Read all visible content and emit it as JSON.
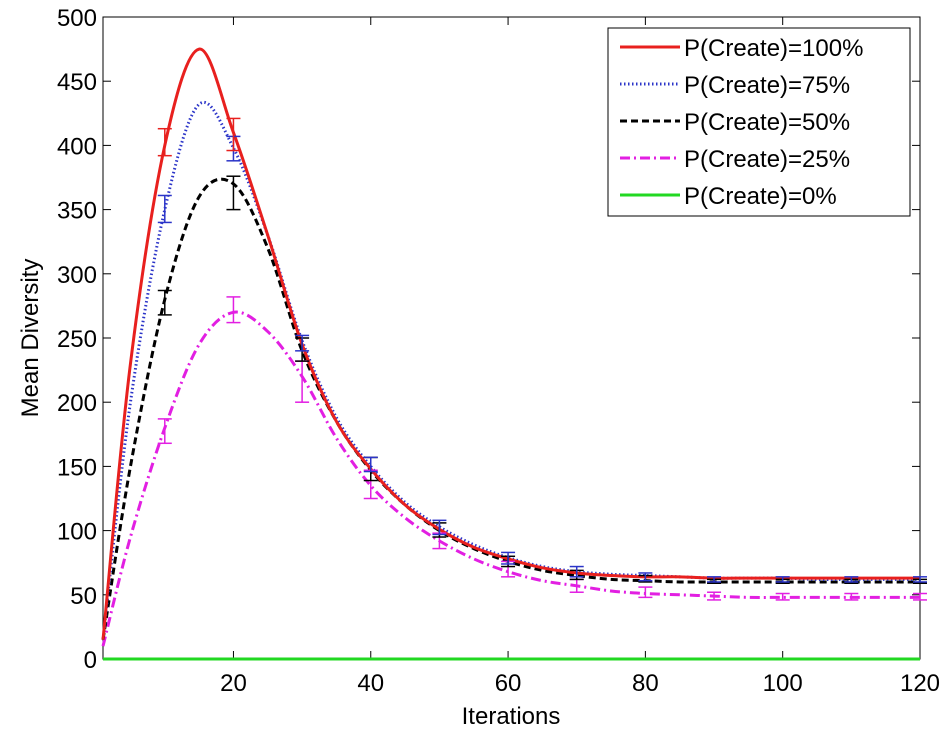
{
  "chart_data": {
    "type": "line",
    "title": "",
    "xlabel": "Iterations",
    "ylabel": "Mean Diversity",
    "xlim": [
      1,
      120
    ],
    "ylim": [
      0,
      500
    ],
    "xticks": [
      20,
      40,
      60,
      80,
      100,
      120
    ],
    "yticks": [
      0,
      50,
      100,
      150,
      200,
      250,
      300,
      350,
      400,
      450,
      500
    ],
    "grid": false,
    "legend_position": "top-right",
    "x": [
      1,
      5,
      10,
      15,
      20,
      25,
      30,
      35,
      40,
      45,
      50,
      55,
      60,
      65,
      70,
      75,
      80,
      85,
      90,
      95,
      100,
      105,
      110,
      115,
      120
    ],
    "series": [
      {
        "name": "P(Create)=100%",
        "color": "#e8201e",
        "dash": "solid",
        "values": [
          15,
          230,
          400,
          475,
          410,
          330,
          245,
          185,
          148,
          120,
          101,
          87,
          78,
          71,
          67,
          65,
          64,
          64,
          63,
          63,
          63,
          63,
          63,
          63,
          63
        ],
        "errorbars": {
          "x": [
            10,
            20
          ],
          "low": [
            392,
            396
          ],
          "high": [
            413,
            421
          ]
        }
      },
      {
        "name": "P(Create)=75%",
        "color": "#2b34c8",
        "dash": "dotted",
        "values": [
          15,
          200,
          350,
          432,
          398,
          330,
          248,
          188,
          150,
          122,
          103,
          89,
          79,
          72,
          68,
          66,
          65,
          64,
          63,
          63,
          63,
          62,
          62,
          62,
          62
        ],
        "errorbars": {
          "x": [
            10,
            20,
            30,
            40,
            50,
            60,
            70,
            80,
            90,
            100,
            110,
            120
          ],
          "low": [
            340,
            388,
            240,
            146,
            97,
            74,
            64,
            61,
            60,
            60,
            60,
            60
          ],
          "high": [
            361,
            407,
            252,
            157,
            108,
            83,
            72,
            67,
            64,
            64,
            64,
            64
          ]
        }
      },
      {
        "name": "P(Create)=50%",
        "color": "#000000",
        "dash": "dashed",
        "values": [
          15,
          150,
          280,
          360,
          370,
          320,
          240,
          185,
          147,
          120,
          100,
          86,
          76,
          69,
          65,
          62,
          61,
          60,
          60,
          60,
          60,
          60,
          60,
          60,
          60
        ],
        "errorbars": {
          "x": [
            10,
            20,
            30,
            40,
            50,
            60,
            70,
            80,
            90,
            100,
            110,
            120
          ],
          "low": [
            268,
            350,
            232,
            139,
            95,
            72,
            62,
            60,
            59,
            59,
            59,
            59
          ],
          "high": [
            287,
            376,
            250,
            157,
            106,
            80,
            69,
            65,
            62,
            62,
            62,
            62
          ]
        }
      },
      {
        "name": "P(Create)=25%",
        "color": "#e21fe2",
        "dash": "dashdot",
        "values": [
          10,
          95,
          180,
          245,
          270,
          255,
          220,
          172,
          135,
          110,
          92,
          78,
          68,
          61,
          57,
          53,
          51,
          50,
          49,
          48,
          48,
          48,
          48,
          48,
          48
        ],
        "errorbars": {
          "x": [
            10,
            20,
            30,
            40,
            50,
            60,
            70,
            80,
            90,
            100,
            110,
            120
          ],
          "low": [
            168,
            262,
            200,
            125,
            86,
            64,
            52,
            48,
            46,
            46,
            46,
            46
          ],
          "high": [
            187,
            282,
            232,
            147,
            98,
            76,
            62,
            56,
            52,
            51,
            51,
            51
          ]
        }
      },
      {
        "name": "P(Create)=0%",
        "color": "#22d822",
        "dash": "solid",
        "values": [
          0,
          0,
          0,
          0,
          0,
          0,
          0,
          0,
          0,
          0,
          0,
          0,
          0,
          0,
          0,
          0,
          0,
          0,
          0,
          0,
          0,
          0,
          0,
          0,
          0
        ]
      }
    ]
  }
}
